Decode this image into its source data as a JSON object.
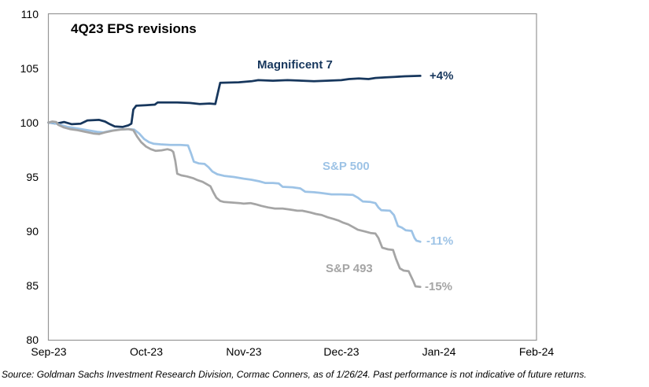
{
  "source_note": "Source: Goldman Sachs Investment Research Division, Cormac Conners, as of 1/26/24. Past performance is not indicative of future returns.",
  "chart_data": {
    "type": "line",
    "title": "4Q23 EPS revisions",
    "xlabel": "",
    "ylabel": "",
    "xlim": [
      0,
      5
    ],
    "ylim": [
      80,
      110
    ],
    "grid": false,
    "legend_position": "inline-labels-on-lines",
    "x_axis_unit": "months (0 = Sep-23 tick, 1 per month)",
    "x_ticks": [
      "Sep-23",
      "Oct-23",
      "Nov-23",
      "Dec-23",
      "Jan-24",
      "Feb-24"
    ],
    "y_ticks": [
      "110",
      "105",
      "100",
      "95",
      "90",
      "85",
      "80"
    ],
    "axis_color": "#969696",
    "series": [
      {
        "name": "Magnificent 7",
        "end_label": "+4%",
        "color": "#17375D",
        "points": [
          [
            0,
            100
          ],
          [
            0.08,
            99.9
          ],
          [
            0.16,
            100.05
          ],
          [
            0.24,
            99.85
          ],
          [
            0.33,
            99.9
          ],
          [
            0.4,
            100.2
          ],
          [
            0.52,
            100.25
          ],
          [
            0.58,
            100.1
          ],
          [
            0.63,
            99.85
          ],
          [
            0.68,
            99.65
          ],
          [
            0.76,
            99.6
          ],
          [
            0.82,
            99.75
          ],
          [
            0.85,
            99.9
          ],
          [
            0.87,
            101.2
          ],
          [
            0.9,
            101.55
          ],
          [
            1,
            101.6
          ],
          [
            1.09,
            101.65
          ],
          [
            1.12,
            101.85
          ],
          [
            1.32,
            101.85
          ],
          [
            1.45,
            101.8
          ],
          [
            1.55,
            101.7
          ],
          [
            1.65,
            101.75
          ],
          [
            1.71,
            101.7
          ],
          [
            1.73,
            102.5
          ],
          [
            1.76,
            103.65
          ],
          [
            1.95,
            103.7
          ],
          [
            2.08,
            103.8
          ],
          [
            2.15,
            103.9
          ],
          [
            2.3,
            103.85
          ],
          [
            2.45,
            103.9
          ],
          [
            2.6,
            103.85
          ],
          [
            2.72,
            103.8
          ],
          [
            2.85,
            103.85
          ],
          [
            3,
            103.9
          ],
          [
            3.08,
            104
          ],
          [
            3.18,
            104.05
          ],
          [
            3.28,
            104
          ],
          [
            3.35,
            104.1
          ],
          [
            3.45,
            104.15
          ],
          [
            3.55,
            104.2
          ],
          [
            3.65,
            104.25
          ],
          [
            3.81,
            104.3
          ]
        ]
      },
      {
        "name": "S&P 500",
        "end_label": "-11%",
        "color": "#9DC3E6",
        "points": [
          [
            0,
            100
          ],
          [
            0.06,
            99.95
          ],
          [
            0.12,
            99.8
          ],
          [
            0.2,
            99.6
          ],
          [
            0.3,
            99.45
          ],
          [
            0.4,
            99.3
          ],
          [
            0.5,
            99.15
          ],
          [
            0.56,
            99.1
          ],
          [
            0.64,
            99.25
          ],
          [
            0.72,
            99.35
          ],
          [
            0.82,
            99.4
          ],
          [
            0.88,
            99.35
          ],
          [
            0.93,
            99
          ],
          [
            0.98,
            98.5
          ],
          [
            1.03,
            98.2
          ],
          [
            1.08,
            98.05
          ],
          [
            1.15,
            98
          ],
          [
            1.25,
            97.95
          ],
          [
            1.35,
            97.95
          ],
          [
            1.43,
            97.9
          ],
          [
            1.46,
            97.2
          ],
          [
            1.49,
            96.4
          ],
          [
            1.54,
            96.25
          ],
          [
            1.6,
            96.2
          ],
          [
            1.64,
            95.9
          ],
          [
            1.68,
            95.5
          ],
          [
            1.73,
            95.25
          ],
          [
            1.8,
            95.1
          ],
          [
            1.9,
            95
          ],
          [
            2,
            94.85
          ],
          [
            2.08,
            94.75
          ],
          [
            2.16,
            94.6
          ],
          [
            2.22,
            94.45
          ],
          [
            2.3,
            94.45
          ],
          [
            2.36,
            94.4
          ],
          [
            2.4,
            94.1
          ],
          [
            2.5,
            94.05
          ],
          [
            2.58,
            93.95
          ],
          [
            2.63,
            93.65
          ],
          [
            2.72,
            93.6
          ],
          [
            2.78,
            93.55
          ],
          [
            2.9,
            93.4
          ],
          [
            3,
            93.4
          ],
          [
            3.12,
            93.35
          ],
          [
            3.17,
            93.1
          ],
          [
            3.22,
            92.75
          ],
          [
            3.3,
            92.7
          ],
          [
            3.35,
            92.6
          ],
          [
            3.38,
            92.2
          ],
          [
            3.41,
            91.95
          ],
          [
            3.5,
            91.9
          ],
          [
            3.54,
            91.5
          ],
          [
            3.58,
            90.5
          ],
          [
            3.62,
            90.35
          ],
          [
            3.66,
            90.1
          ],
          [
            3.72,
            90.05
          ],
          [
            3.75,
            89.4
          ],
          [
            3.77,
            89.15
          ],
          [
            3.81,
            89.05
          ]
        ]
      },
      {
        "name": "S&P 493",
        "end_label": "-15%",
        "color": "#A5A5A5",
        "points": [
          [
            0,
            100
          ],
          [
            0.04,
            100.1
          ],
          [
            0.08,
            100.05
          ],
          [
            0.1,
            99.8
          ],
          [
            0.16,
            99.55
          ],
          [
            0.22,
            99.4
          ],
          [
            0.3,
            99.3
          ],
          [
            0.38,
            99.15
          ],
          [
            0.46,
            99
          ],
          [
            0.52,
            98.95
          ],
          [
            0.58,
            99.1
          ],
          [
            0.66,
            99.25
          ],
          [
            0.74,
            99.35
          ],
          [
            0.82,
            99.4
          ],
          [
            0.87,
            99.3
          ],
          [
            0.91,
            98.7
          ],
          [
            0.95,
            98.2
          ],
          [
            1,
            97.8
          ],
          [
            1.05,
            97.55
          ],
          [
            1.1,
            97.4
          ],
          [
            1.16,
            97.45
          ],
          [
            1.22,
            97.55
          ],
          [
            1.26,
            97.45
          ],
          [
            1.28,
            97.3
          ],
          [
            1.3,
            96.5
          ],
          [
            1.32,
            95.3
          ],
          [
            1.36,
            95.15
          ],
          [
            1.42,
            95.05
          ],
          [
            1.48,
            94.9
          ],
          [
            1.53,
            94.7
          ],
          [
            1.58,
            94.55
          ],
          [
            1.63,
            94.3
          ],
          [
            1.66,
            94.15
          ],
          [
            1.69,
            93.6
          ],
          [
            1.72,
            93.1
          ],
          [
            1.76,
            92.8
          ],
          [
            1.8,
            92.7
          ],
          [
            1.88,
            92.65
          ],
          [
            1.96,
            92.6
          ],
          [
            2,
            92.55
          ],
          [
            2.07,
            92.6
          ],
          [
            2.12,
            92.5
          ],
          [
            2.18,
            92.35
          ],
          [
            2.25,
            92.2
          ],
          [
            2.32,
            92.1
          ],
          [
            2.4,
            92.1
          ],
          [
            2.48,
            92
          ],
          [
            2.55,
            91.9
          ],
          [
            2.6,
            91.9
          ],
          [
            2.68,
            91.75
          ],
          [
            2.74,
            91.6
          ],
          [
            2.8,
            91.5
          ],
          [
            2.86,
            91.3
          ],
          [
            2.92,
            91.15
          ],
          [
            2.97,
            91
          ],
          [
            3.02,
            90.8
          ],
          [
            3.07,
            90.65
          ],
          [
            3.12,
            90.4
          ],
          [
            3.17,
            90.15
          ],
          [
            3.24,
            90
          ],
          [
            3.3,
            89.85
          ],
          [
            3.35,
            89.8
          ],
          [
            3.38,
            89.4
          ],
          [
            3.42,
            88.5
          ],
          [
            3.48,
            88.35
          ],
          [
            3.53,
            88.3
          ],
          [
            3.56,
            87.5
          ],
          [
            3.6,
            86.6
          ],
          [
            3.64,
            86.4
          ],
          [
            3.69,
            86.35
          ],
          [
            3.74,
            85.4
          ],
          [
            3.76,
            84.95
          ],
          [
            3.81,
            84.9
          ]
        ]
      }
    ]
  }
}
